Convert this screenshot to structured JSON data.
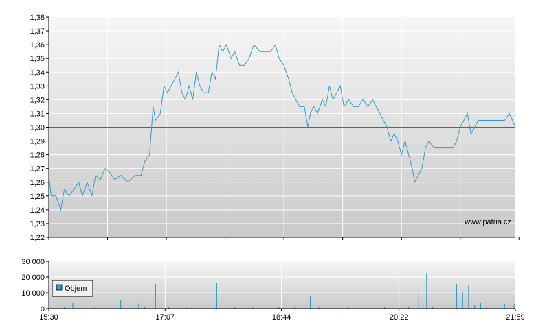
{
  "watermark": "www.patria.cz",
  "colors": {
    "price_line": "#3399cc",
    "reference_line": "#cc3333",
    "volume_bar": "#3399cc",
    "grid": "#ffffff",
    "axis": "#000000"
  },
  "chart_data": [
    {
      "type": "line",
      "title": "",
      "xlabel": "",
      "ylabel": "",
      "ylim": [
        1.22,
        1.38
      ],
      "yticks": [
        "1,38",
        "1,37",
        "1,36",
        "1,35",
        "1,34",
        "1,33",
        "1,32",
        "1,31",
        "1,30",
        "1,29",
        "1,28",
        "1,27",
        "1,26",
        "1,25",
        "1,24",
        "1,23",
        "1,22"
      ],
      "xlim": [
        "15:30",
        "21:59"
      ],
      "reference_value": 1.3,
      "grid": true,
      "series": [
        {
          "points": [
            [
              "15:30",
              1.265
            ],
            [
              "15:32",
              1.25
            ],
            [
              "15:36",
              1.25
            ],
            [
              "15:40",
              1.24
            ],
            [
              "15:43",
              1.255
            ],
            [
              "15:47",
              1.25
            ],
            [
              "15:51",
              1.255
            ],
            [
              "15:55",
              1.26
            ],
            [
              "15:58",
              1.25
            ],
            [
              "16:02",
              1.26
            ],
            [
              "16:06",
              1.25
            ],
            [
              "16:09",
              1.265
            ],
            [
              "16:13",
              1.262
            ],
            [
              "16:17",
              1.27
            ],
            [
              "16:21",
              1.267
            ],
            [
              "16:25",
              1.262
            ],
            [
              "16:30",
              1.265
            ],
            [
              "16:36",
              1.26
            ],
            [
              "16:42",
              1.265
            ],
            [
              "16:47",
              1.265
            ],
            [
              "16:50",
              1.275
            ],
            [
              "16:54",
              1.28
            ],
            [
              "16:57",
              1.315
            ],
            [
              "16:59",
              1.305
            ],
            [
              "17:03",
              1.31
            ],
            [
              "17:06",
              1.33
            ],
            [
              "17:09",
              1.325
            ],
            [
              "17:12",
              1.33
            ],
            [
              "17:15",
              1.335
            ],
            [
              "17:18",
              1.34
            ],
            [
              "17:21",
              1.325
            ],
            [
              "17:24",
              1.32
            ],
            [
              "17:27",
              1.33
            ],
            [
              "17:30",
              1.32
            ],
            [
              "17:33",
              1.34
            ],
            [
              "17:36",
              1.33
            ],
            [
              "17:39",
              1.325
            ],
            [
              "17:43",
              1.325
            ],
            [
              "17:46",
              1.34
            ],
            [
              "17:49",
              1.335
            ],
            [
              "17:52",
              1.36
            ],
            [
              "17:55",
              1.355
            ],
            [
              "17:58",
              1.36
            ],
            [
              "18:02",
              1.35
            ],
            [
              "18:05",
              1.355
            ],
            [
              "18:09",
              1.345
            ],
            [
              "18:13",
              1.345
            ],
            [
              "18:17",
              1.35
            ],
            [
              "18:21",
              1.36
            ],
            [
              "18:26",
              1.355
            ],
            [
              "18:31",
              1.355
            ],
            [
              "18:35",
              1.355
            ],
            [
              "18:39",
              1.36
            ],
            [
              "18:42",
              1.35
            ],
            [
              "18:46",
              1.345
            ],
            [
              "18:50",
              1.335
            ],
            [
              "18:53",
              1.325
            ],
            [
              "18:56",
              1.32
            ],
            [
              "18:59",
              1.315
            ],
            [
              "19:03",
              1.315
            ],
            [
              "19:06",
              1.3
            ],
            [
              "19:08",
              1.31
            ],
            [
              "19:11",
              1.315
            ],
            [
              "19:14",
              1.31
            ],
            [
              "19:18",
              1.32
            ],
            [
              "19:21",
              1.315
            ],
            [
              "19:24",
              1.33
            ],
            [
              "19:27",
              1.32
            ],
            [
              "19:30",
              1.325
            ],
            [
              "19:33",
              1.33
            ],
            [
              "19:36",
              1.315
            ],
            [
              "19:40",
              1.32
            ],
            [
              "19:44",
              1.315
            ],
            [
              "19:48",
              1.315
            ],
            [
              "19:52",
              1.32
            ],
            [
              "19:56",
              1.315
            ],
            [
              "20:00",
              1.32
            ],
            [
              "20:03",
              1.315
            ],
            [
              "20:06",
              1.31
            ],
            [
              "20:09",
              1.305
            ],
            [
              "20:12",
              1.3
            ],
            [
              "20:15",
              1.29
            ],
            [
              "20:18",
              1.295
            ],
            [
              "20:21",
              1.29
            ],
            [
              "20:24",
              1.28
            ],
            [
              "20:27",
              1.29
            ],
            [
              "20:30",
              1.28
            ],
            [
              "20:33",
              1.27
            ],
            [
              "20:35",
              1.26
            ],
            [
              "20:38",
              1.265
            ],
            [
              "20:41",
              1.27
            ],
            [
              "20:44",
              1.285
            ],
            [
              "20:47",
              1.29
            ],
            [
              "20:51",
              1.285
            ],
            [
              "20:55",
              1.285
            ],
            [
              "20:59",
              1.285
            ],
            [
              "21:03",
              1.285
            ],
            [
              "21:07",
              1.285
            ],
            [
              "21:10",
              1.29
            ],
            [
              "21:13",
              1.3
            ],
            [
              "21:16",
              1.305
            ],
            [
              "21:19",
              1.31
            ],
            [
              "21:22",
              1.295
            ],
            [
              "21:25",
              1.3
            ],
            [
              "21:28",
              1.305
            ],
            [
              "21:32",
              1.305
            ],
            [
              "21:38",
              1.305
            ],
            [
              "21:44",
              1.305
            ],
            [
              "21:50",
              1.305
            ],
            [
              "21:54",
              1.31
            ],
            [
              "21:59",
              1.3
            ]
          ]
        }
      ]
    },
    {
      "type": "bar",
      "title": "",
      "xlabel": "",
      "ylabel": "",
      "ylim": [
        0,
        30000
      ],
      "yticks": [
        "30 000",
        "20 000",
        "10 000",
        "0"
      ],
      "xticks": [
        "15:30",
        "17:07",
        "18:44",
        "20:22",
        "21:59"
      ],
      "grid": true,
      "legend": {
        "placement": "left",
        "label": "Objem"
      },
      "series": [
        {
          "name": "Objem",
          "points": [
            [
              "15:36",
              800
            ],
            [
              "15:43",
              1200
            ],
            [
              "15:50",
              3500
            ],
            [
              "16:08",
              500
            ],
            [
              "16:30",
              5500
            ],
            [
              "16:45",
              3200
            ],
            [
              "16:50",
              1500
            ],
            [
              "16:59",
              15500
            ],
            [
              "17:10",
              1000
            ],
            [
              "17:25",
              600
            ],
            [
              "17:50",
              16500
            ],
            [
              "18:05",
              900
            ],
            [
              "18:12",
              700
            ],
            [
              "18:20",
              800
            ],
            [
              "18:42",
              1000
            ],
            [
              "18:55",
              1500
            ],
            [
              "19:08",
              8000
            ],
            [
              "19:15",
              900
            ],
            [
              "19:25",
              600
            ],
            [
              "19:40",
              1000
            ],
            [
              "19:58",
              700
            ],
            [
              "20:10",
              1200
            ],
            [
              "20:30",
              1500
            ],
            [
              "20:38",
              10500
            ],
            [
              "20:42",
              2500
            ],
            [
              "20:45",
              22500
            ],
            [
              "20:50",
              1500
            ],
            [
              "21:10",
              15500
            ],
            [
              "21:15",
              10500
            ],
            [
              "21:20",
              15000
            ],
            [
              "21:25",
              2000
            ],
            [
              "21:30",
              3500
            ],
            [
              "21:35",
              1000
            ],
            [
              "21:50",
              3000
            ],
            [
              "21:58",
              2500
            ]
          ]
        }
      ]
    }
  ]
}
